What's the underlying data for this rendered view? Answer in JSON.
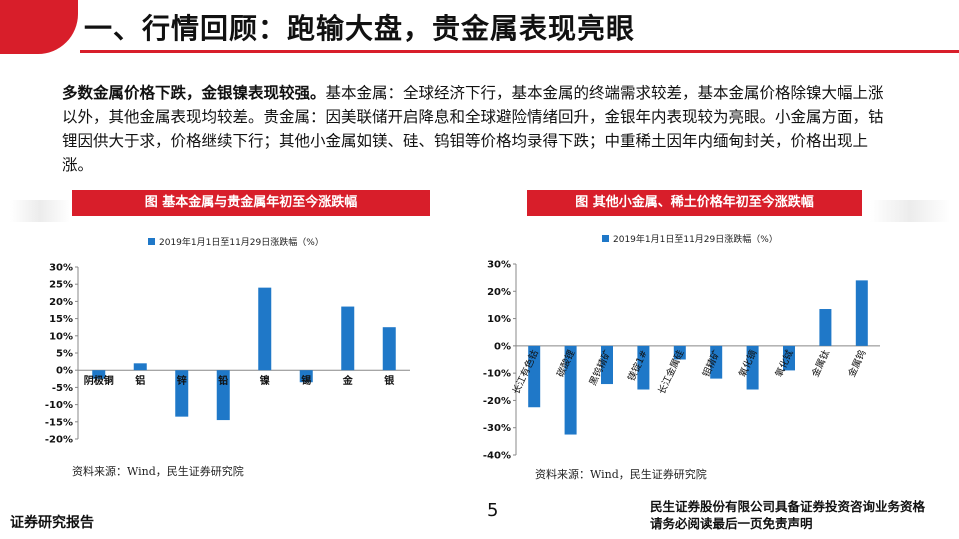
{
  "header": {
    "title": "一、行情回顾：跑输大盘，贵金属表现亮眼"
  },
  "paragraph": {
    "lead": "多数金属价格下跌，金银镍表现较强。",
    "body": "基本金属：全球经济下行，基本金属的终端需求较差，基本金属价格除镍大幅上涨以外，其他金属表现均较差。贵金属：因美联储开启降息和全球避险情绪回升，金银年内表现较为亮眼。小金属方面，钴锂因供大于求，价格继续下行；其他小金属如镁、硅、钨钼等价格均录得下跌；中重稀土因年内缅甸封关，价格出现上涨。"
  },
  "colors": {
    "accent": "#d81e2a",
    "bar": "#1f78c8"
  },
  "chart_data": [
    {
      "type": "bar",
      "title": "图 基本金属与贵金属年初至今涨跌幅",
      "legend": "2019年1月1日至11月29日涨跌幅（%）",
      "categories": [
        "阴极铜",
        "铝",
        "锌",
        "铅",
        "镍",
        "锡",
        "金",
        "银"
      ],
      "series": [
        {
          "name": "2019年1月1日至11月29日涨跌幅（%）",
          "values": [
            -2.5,
            2.0,
            -13.5,
            -14.5,
            24.0,
            -3.5,
            18.5,
            12.5
          ]
        }
      ],
      "ylim": [
        -20,
        30
      ],
      "yticks": [
        "30%",
        "25%",
        "20%",
        "15%",
        "10%",
        "5%",
        "0%",
        "-5%",
        "-10%",
        "-15%",
        "-20%"
      ],
      "source": "资料来源：Wind，民生证券研究院"
    },
    {
      "type": "bar",
      "title": "图 其他小金属、稀土价格年初至今涨跌幅",
      "legend": "2019年1月1日至11月29日涨跌幅（%）",
      "categories": [
        "长江有色钴",
        "碳酸锂",
        "黑钨精矿",
        "镁锭1#",
        "长江金属硅",
        "钼精矿",
        "氧化镝",
        "氧化铽",
        "金属钛",
        "金属钨"
      ],
      "series": [
        {
          "name": "2019年1月1日至11月29日涨跌幅（%）",
          "values": [
            -22.5,
            -32.5,
            -14.0,
            -16.0,
            -5.0,
            -12.0,
            -16.0,
            -9.0,
            13.5,
            24.0
          ]
        }
      ],
      "ylim": [
        -40,
        30
      ],
      "yticks": [
        "30%",
        "20%",
        "10%",
        "0%",
        "-10%",
        "-20%",
        "-30%",
        "-40%"
      ],
      "source": "资料来源：Wind，民生证券研究院"
    }
  ],
  "footer": {
    "left": "证券研究报告",
    "page": "5",
    "right_line1": "民生证券股份有限公司具备证券投资咨询业务资格",
    "right_line2": "请务必阅读最后一页免责声明"
  }
}
